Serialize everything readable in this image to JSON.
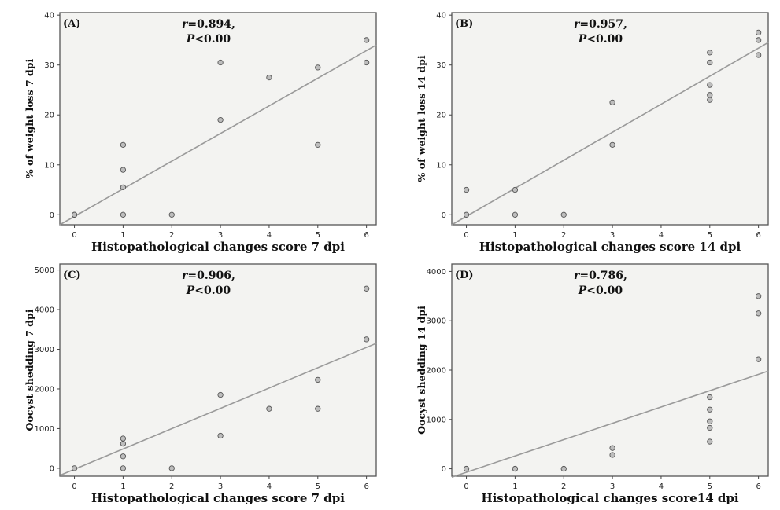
{
  "chart_data": [
    {
      "id": "A",
      "type": "scatter",
      "panel_label": "(A)",
      "r_label": "r",
      "r_value": "=0.894,",
      "p_label": "P",
      "p_value": "<0.00",
      "xlabel": "Histopathological changes score 7 dpi",
      "ylabel": "% of weight loss 7 dpi",
      "xlim": [
        -0.3,
        6.2
      ],
      "ylim": [
        -2,
        40.5
      ],
      "xticks": [
        0,
        1,
        2,
        3,
        4,
        5,
        6
      ],
      "yticks": [
        0,
        10,
        20,
        30,
        40
      ],
      "points": [
        [
          0,
          0
        ],
        [
          0,
          0
        ],
        [
          1,
          0
        ],
        [
          1,
          5.5
        ],
        [
          1,
          9
        ],
        [
          1,
          14
        ],
        [
          2,
          0
        ],
        [
          3,
          19
        ],
        [
          3,
          30.5
        ],
        [
          4,
          27.5
        ],
        [
          5,
          14
        ],
        [
          5,
          29.5
        ],
        [
          6,
          30.5
        ],
        [
          6,
          35
        ]
      ],
      "fit": [
        [
          -0.3,
          -2
        ],
        [
          6.2,
          34
        ]
      ]
    },
    {
      "id": "B",
      "type": "scatter",
      "panel_label": "(B)",
      "r_label": "r",
      "r_value": "=0.957,",
      "p_label": "P",
      "p_value": "<0.00",
      "xlabel": "Histopathological changes score 14 dpi",
      "ylabel": "% of weight loss 14 dpi",
      "xlim": [
        -0.3,
        6.2
      ],
      "ylim": [
        -2,
        40.5
      ],
      "xticks": [
        0,
        1,
        2,
        3,
        4,
        5,
        6
      ],
      "yticks": [
        0,
        10,
        20,
        30,
        40
      ],
      "points": [
        [
          0,
          0
        ],
        [
          0,
          5
        ],
        [
          1,
          0
        ],
        [
          1,
          5
        ],
        [
          2,
          0
        ],
        [
          3,
          14
        ],
        [
          3,
          22.5
        ],
        [
          5,
          23
        ],
        [
          5,
          24
        ],
        [
          5,
          26
        ],
        [
          5,
          30.5
        ],
        [
          5,
          32.5
        ],
        [
          6,
          32
        ],
        [
          6,
          35
        ],
        [
          6,
          36.5
        ]
      ],
      "fit": [
        [
          -0.3,
          -2
        ],
        [
          6.2,
          34.5
        ]
      ]
    },
    {
      "id": "C",
      "type": "scatter",
      "panel_label": "(C)",
      "r_label": "r",
      "r_value": "=0.906,",
      "p_label": "P",
      "p_value": "<0.00",
      "xlabel": "Histopathological changes score 7 dpi",
      "ylabel": "Oocyst shedding 7 dpi",
      "xlim": [
        -0.3,
        6.2
      ],
      "ylim": [
        -200,
        5150
      ],
      "xticks": [
        0,
        1,
        2,
        3,
        4,
        5,
        6
      ],
      "yticks": [
        0,
        1000,
        2000,
        3000,
        4000,
        5000
      ],
      "points": [
        [
          0,
          0
        ],
        [
          1,
          0
        ],
        [
          1,
          300
        ],
        [
          1,
          620
        ],
        [
          1,
          750
        ],
        [
          2,
          0
        ],
        [
          3,
          820
        ],
        [
          3,
          1850
        ],
        [
          4,
          1500
        ],
        [
          5,
          1500
        ],
        [
          5,
          2230
        ],
        [
          6,
          3250
        ],
        [
          6,
          4530
        ]
      ],
      "fit": [
        [
          -0.3,
          -180
        ],
        [
          6.2,
          3150
        ]
      ]
    },
    {
      "id": "D",
      "type": "scatter",
      "panel_label": "(D)",
      "r_label": "r",
      "r_value": "=0.786,",
      "p_label": "P",
      "p_value": "<0.00",
      "xlabel": "Histopathological changes score14 dpi",
      "ylabel": "Oocyst shedding 14 dpi",
      "xlim": [
        -0.3,
        6.2
      ],
      "ylim": [
        -150,
        4150
      ],
      "xticks": [
        0,
        1,
        2,
        3,
        4,
        5,
        6
      ],
      "yticks": [
        0,
        1000,
        2000,
        3000,
        4000
      ],
      "points": [
        [
          0,
          0
        ],
        [
          1,
          0
        ],
        [
          2,
          0
        ],
        [
          3,
          280
        ],
        [
          3,
          420
        ],
        [
          5,
          550
        ],
        [
          5,
          830
        ],
        [
          5,
          960
        ],
        [
          5,
          1200
        ],
        [
          5,
          1450
        ],
        [
          6,
          2220
        ],
        [
          6,
          3150
        ],
        [
          6,
          3500
        ]
      ],
      "fit": [
        [
          -0.3,
          -170
        ],
        [
          6.2,
          1980
        ]
      ]
    }
  ]
}
